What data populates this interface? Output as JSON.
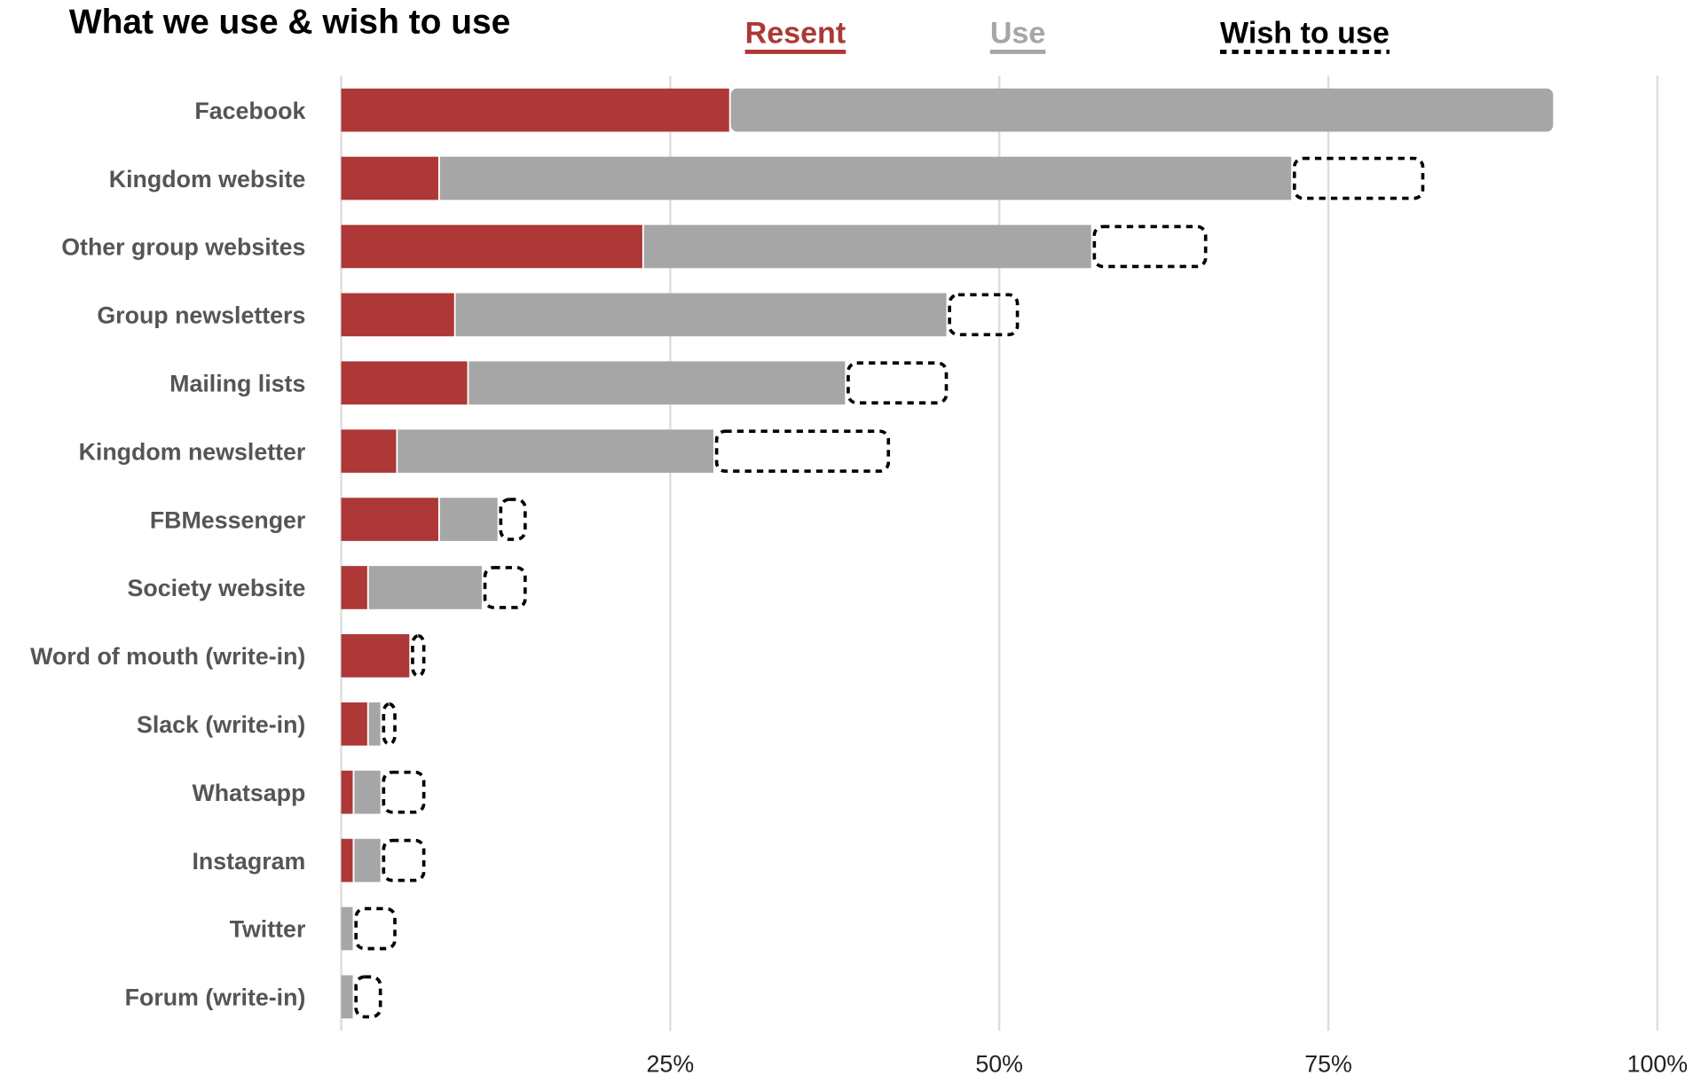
{
  "chart_data": {
    "type": "bar",
    "orientation": "horizontal",
    "stacked": true,
    "title": "What we use & wish to use",
    "categories": [
      "Facebook",
      "Kingdom website",
      "Other group websites",
      "Group newsletters",
      "Mailing lists",
      "Kingdom newsletter",
      "FBMessenger",
      "Society website",
      "Word of mouth (write-in)",
      "Slack (write-in)",
      "Whatsapp",
      "Instagram",
      "Twitter",
      "Forum (write-in)"
    ],
    "series": [
      {
        "name": "Resent",
        "color": "#ad3837",
        "style": "solid",
        "values": [
          29.6,
          7.5,
          23.0,
          8.7,
          9.7,
          4.3,
          7.5,
          2.1,
          5.3,
          2.1,
          1.0,
          1.0,
          0,
          0
        ]
      },
      {
        "name": "Use",
        "color": "#a6a6a6",
        "style": "solid",
        "values": [
          62.6,
          64.8,
          34.1,
          37.4,
          28.7,
          24.1,
          4.5,
          8.7,
          0,
          1.0,
          2.1,
          2.1,
          1.0,
          1.0
        ]
      },
      {
        "name": "Wish to use",
        "color": "#000000",
        "style": "dashed-outline",
        "values": [
          0,
          10.0,
          8.7,
          5.4,
          7.7,
          13.3,
          2.1,
          3.3,
          1.1,
          1.1,
          3.3,
          3.3,
          3.2,
          2.1
        ]
      }
    ],
    "xlim": [
      0,
      100
    ],
    "x_ticks": [
      "25%",
      "50%",
      "75%",
      "100%"
    ],
    "x_tick_values": [
      25,
      50,
      75,
      100
    ],
    "grid": true,
    "legend": "top"
  }
}
